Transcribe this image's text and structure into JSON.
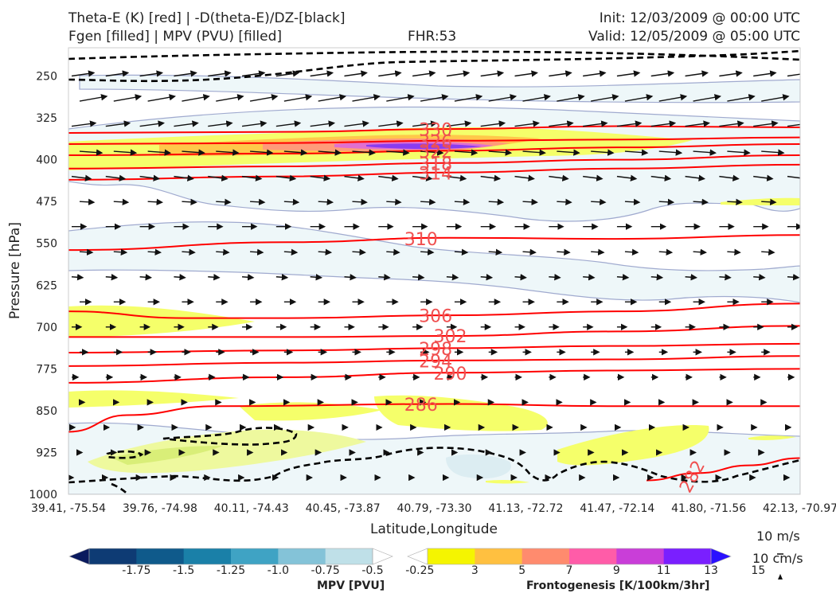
{
  "header": {
    "title_line1": "Theta-E (K) [red] | -D(theta-E)/DZ-[black]",
    "title_line2": "Fgen [filled] | MPV (PVU) [filled]",
    "fhr": "FHR:53",
    "init": "Init: 12/03/2009 @ 00:00 UTC",
    "valid": "Valid: 12/05/2009 @ 05:00 UTC"
  },
  "chart_data": {
    "type": "cross-section",
    "xlabel": "Latitude,Longitude",
    "ylabel": "Pressure [hPa]",
    "x_ticks": [
      "39.41, -75.54",
      "39.76, -74.98",
      "40.11, -74.43",
      "40.45, -73.87",
      "40.79, -73.30",
      "41.13, -72.72",
      "41.47, -72.14",
      "41.80, -71.56",
      "42.13, -70.97"
    ],
    "y_ticks": [
      250,
      325,
      400,
      475,
      550,
      625,
      700,
      775,
      850,
      925,
      1000
    ],
    "ylim": [
      1000,
      200
    ],
    "theta_e_contours": [
      {
        "label": "330",
        "points": [
          [
            0,
            352
          ],
          [
            0.3,
            350
          ],
          [
            0.52,
            345
          ],
          [
            0.75,
            340
          ],
          [
            1.0,
            342
          ]
        ]
      },
      {
        "label": "326",
        "points": [
          [
            0,
            372
          ],
          [
            0.3,
            370
          ],
          [
            0.52,
            366
          ],
          [
            0.75,
            364
          ],
          [
            1.0,
            360
          ]
        ]
      },
      {
        "label": "322",
        "points": [
          [
            0,
            392
          ],
          [
            0.3,
            389
          ],
          [
            0.52,
            384
          ],
          [
            0.75,
            378
          ],
          [
            1.0,
            372
          ]
        ]
      },
      {
        "label": "318",
        "points": [
          [
            0,
            416
          ],
          [
            0.3,
            412
          ],
          [
            0.52,
            406
          ],
          [
            0.75,
            400
          ],
          [
            1.0,
            392
          ]
        ]
      },
      {
        "label": "314",
        "points": [
          [
            0,
            436
          ],
          [
            0.3,
            430
          ],
          [
            0.52,
            423
          ],
          [
            0.75,
            416
          ],
          [
            1.0,
            409
          ]
        ]
      },
      {
        "label": "310",
        "points": [
          [
            0,
            562
          ],
          [
            0.3,
            548
          ],
          [
            0.52,
            540
          ],
          [
            0.75,
            542
          ],
          [
            1.0,
            535
          ]
        ]
      },
      {
        "label": "306",
        "points": [
          [
            0,
            672
          ],
          [
            0.16,
            684
          ],
          [
            0.3,
            684
          ],
          [
            0.52,
            679
          ],
          [
            0.75,
            672
          ],
          [
            1.0,
            658
          ]
        ]
      },
      {
        "label": "302",
        "points": [
          [
            0,
            718
          ],
          [
            0.3,
            718
          ],
          [
            0.52,
            716
          ],
          [
            0.75,
            708
          ],
          [
            1.0,
            698
          ]
        ]
      },
      {
        "label": "298",
        "points": [
          [
            0,
            746
          ],
          [
            0.3,
            742
          ],
          [
            0.52,
            738
          ],
          [
            0.75,
            734
          ],
          [
            1.0,
            730
          ]
        ]
      },
      {
        "label": "294",
        "points": [
          [
            0,
            770
          ],
          [
            0.3,
            764
          ],
          [
            0.52,
            760
          ],
          [
            0.75,
            758
          ],
          [
            1.0,
            752
          ]
        ]
      },
      {
        "label": "290",
        "points": [
          [
            0,
            800
          ],
          [
            0.3,
            790
          ],
          [
            0.52,
            782
          ],
          [
            0.75,
            778
          ],
          [
            1.0,
            775
          ]
        ]
      },
      {
        "label": "286",
        "points": [
          [
            0,
            888
          ],
          [
            0.08,
            858
          ],
          [
            0.2,
            842
          ],
          [
            0.52,
            838
          ],
          [
            0.75,
            842
          ],
          [
            1.0,
            842
          ]
        ]
      },
      {
        "label": "282",
        "points": [
          [
            0.79,
            975
          ],
          [
            0.86,
            962
          ],
          [
            0.93,
            948
          ],
          [
            1.0,
            935
          ]
        ]
      }
    ],
    "theta_e_label_positions": [
      {
        "label": "330",
        "x": 0.48
      },
      {
        "label": "326",
        "x": 0.48
      },
      {
        "label": "322",
        "x": 0.48
      },
      {
        "label": "318",
        "x": 0.48
      },
      {
        "label": "314",
        "x": 0.48
      },
      {
        "label": "310",
        "x": 0.46
      },
      {
        "label": "306",
        "x": 0.48
      },
      {
        "label": "302",
        "x": 0.5
      },
      {
        "label": "298",
        "x": 0.48
      },
      {
        "label": "294",
        "x": 0.48
      },
      {
        "label": "290",
        "x": 0.5
      },
      {
        "label": "286",
        "x": 0.46
      },
      {
        "label": "282",
        "x": 0.83
      }
    ],
    "colors": {
      "theta_e": "#ff0000",
      "theta_e_label": "#f05050",
      "mpv_outline": "#a0aacf",
      "mpv_fill_light": "#e6f4f7",
      "fgen_yellow": "#f5ff6a",
      "fgen_orange": "#ffbf40",
      "fgen_salmon": "#ff8b6e",
      "fgen_pink": "#ff5ca8",
      "fgen_magenta": "#c93ed8",
      "fgen_purple": "#7a1fff",
      "fgen_blue": "#2a10ff"
    },
    "mpv_colorbar": {
      "title": "MPV [PVU]",
      "ticks": [
        "-1.75",
        "-1.5",
        "-1.25",
        "-1.0",
        "-0.75",
        "-0.5",
        "-0.25"
      ],
      "colors": [
        "#0a1a5e",
        "#0e3b74",
        "#0f5a8b",
        "#1a80a8",
        "#3fa3c4",
        "#84c3d8",
        "#bfe0e8",
        "#ffffff"
      ]
    },
    "fgen_colorbar": {
      "title": "Frontogenesis [K/100km/3hr]",
      "ticks": [
        "3",
        "5",
        "7",
        "9",
        "11",
        "13",
        "15"
      ],
      "colors": [
        "#ffffff",
        "#f5f500",
        "#ffc040",
        "#ff8b6e",
        "#ff5ca8",
        "#c93ed8",
        "#7a1fff",
        "#2a10ff"
      ]
    },
    "wind_reference": {
      "label1": "10 m/s",
      "label2": "10 cm/s"
    }
  }
}
